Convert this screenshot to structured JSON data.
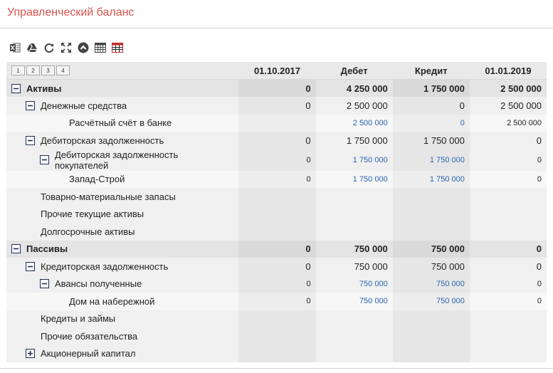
{
  "page": {
    "title": "Управленческий баланс"
  },
  "toolbar": {
    "icons": [
      "excel-icon",
      "drive-icon",
      "refresh-icon",
      "expand-icon",
      "collapse-up-icon",
      "table-icon",
      "table-red-icon"
    ]
  },
  "levels": [
    "1",
    "2",
    "3",
    "4"
  ],
  "columns": [
    "01.10.2017",
    "Дебет",
    "Кредит",
    "01.01.2019"
  ],
  "rows": [
    {
      "label": "Активы",
      "level": 0,
      "toggle": "minus",
      "v": [
        "0",
        "4 250 000",
        "1 750 000",
        "2 500 000"
      ]
    },
    {
      "label": "Денежные средства",
      "level": 1,
      "toggle": "minus",
      "v": [
        "0",
        "2 500 000",
        "0",
        "2 500 000"
      ]
    },
    {
      "label": "Расчётный счёт в банке",
      "level": 3,
      "toggle": "",
      "v": [
        "",
        "2 500 000",
        "0",
        "2 500 000"
      ]
    },
    {
      "label": "Дебиторская задолженность",
      "level": 1,
      "toggle": "minus",
      "v": [
        "0",
        "1 750 000",
        "1 750 000",
        "0"
      ]
    },
    {
      "label": "Дебиторская задолженность покупателей",
      "level": 2,
      "toggle": "minus",
      "v": [
        "0",
        "1 750 000",
        "1 750 000",
        "0"
      ]
    },
    {
      "label": "Запад-Строй",
      "level": 3,
      "toggle": "",
      "v": [
        "0",
        "1 750 000",
        "1 750 000",
        "0"
      ]
    },
    {
      "label": "Товарно-материальные запасы",
      "level": 1,
      "toggle": "",
      "v": [
        "",
        "",
        "",
        ""
      ]
    },
    {
      "label": "Прочие текущие активы",
      "level": 1,
      "toggle": "",
      "v": [
        "",
        "",
        "",
        ""
      ]
    },
    {
      "label": "Долгосрочные активы",
      "level": 1,
      "toggle": "",
      "v": [
        "",
        "",
        "",
        ""
      ]
    },
    {
      "label": "Пассивы",
      "level": 0,
      "toggle": "minus",
      "v": [
        "0",
        "750 000",
        "750 000",
        "0"
      ]
    },
    {
      "label": "Кредиторская задолженность",
      "level": 1,
      "toggle": "minus",
      "v": [
        "0",
        "750 000",
        "750 000",
        "0"
      ]
    },
    {
      "label": "Авансы полученные",
      "level": 2,
      "toggle": "minus",
      "v": [
        "0",
        "750 000",
        "750 000",
        "0"
      ]
    },
    {
      "label": "Дом на набережной",
      "level": 3,
      "toggle": "",
      "v": [
        "0",
        "750 000",
        "750 000",
        "0"
      ]
    },
    {
      "label": "Кредиты и займы",
      "level": 1,
      "toggle": "",
      "v": [
        "",
        "",
        "",
        ""
      ]
    },
    {
      "label": "Прочие обязательства",
      "level": 1,
      "toggle": "",
      "v": [
        "",
        "",
        "",
        ""
      ]
    },
    {
      "label": "Акционерный капитал",
      "level": 1,
      "toggle": "plus",
      "v": [
        "",
        "",
        "",
        ""
      ]
    }
  ],
  "colors": {
    "title": "#d9534f",
    "link": "#2a64b5",
    "toggle_border": "#1c2c5c"
  }
}
